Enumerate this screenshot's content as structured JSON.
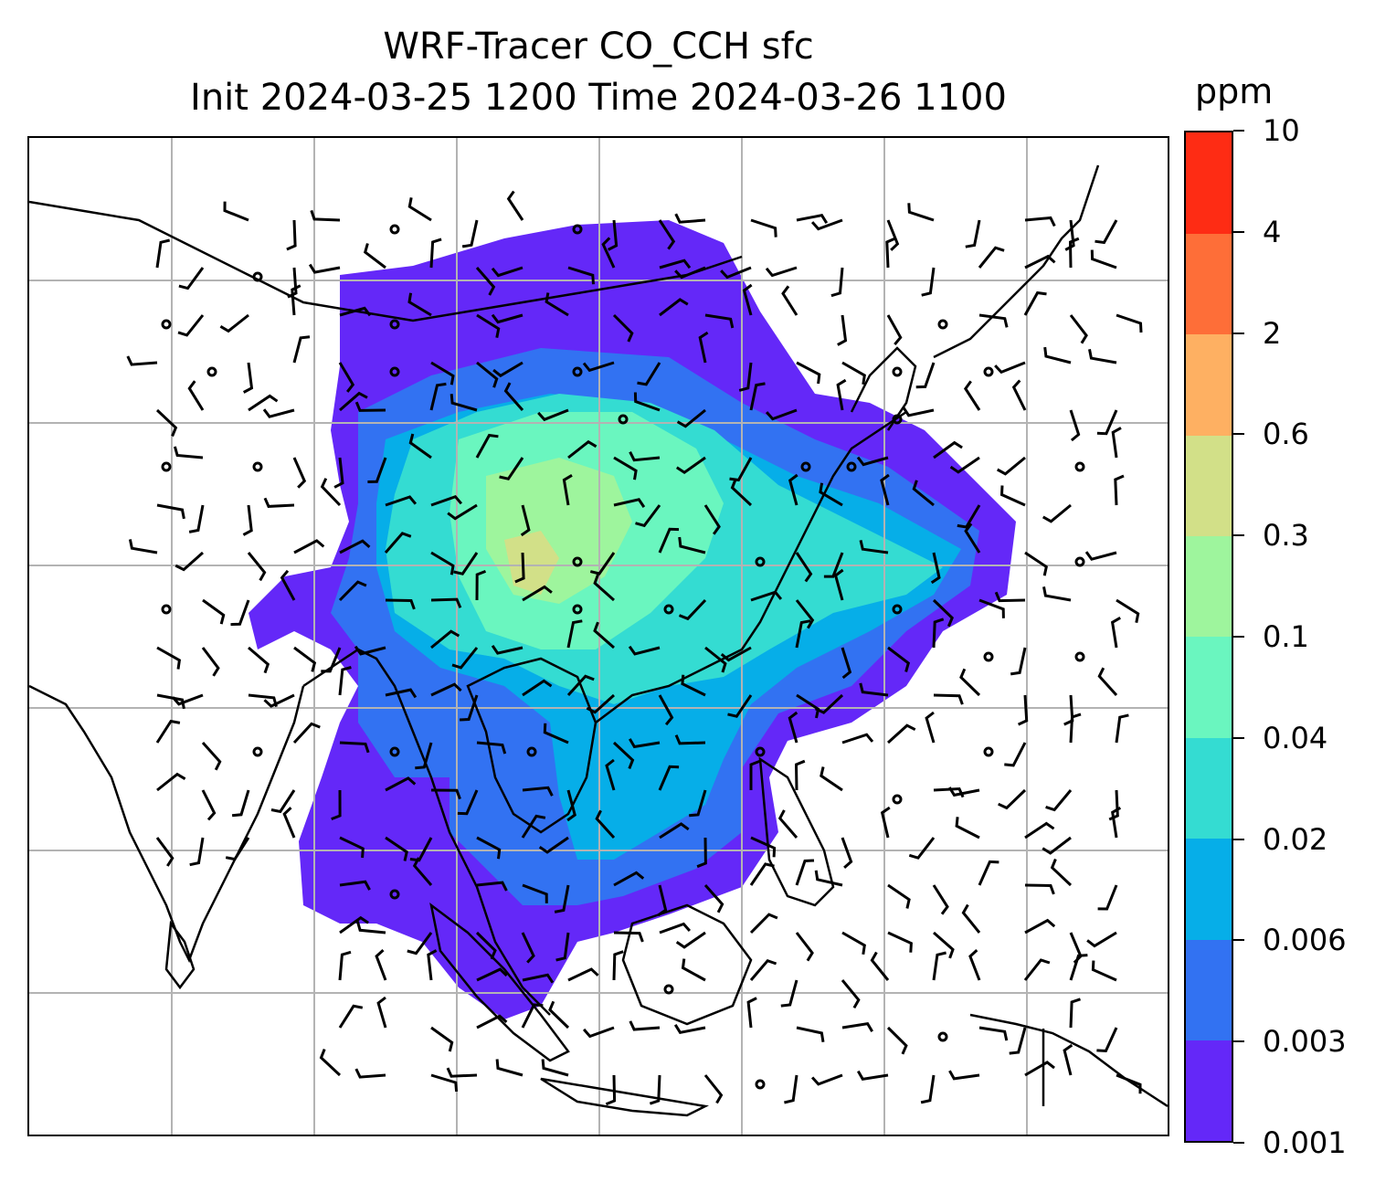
{
  "title": {
    "line1": "WRF-Tracer CO_CCH sfc",
    "line2": "Init 2024-03-25 1200 Time 2024-03-26 1100"
  },
  "colorbar": {
    "unit": "ppm",
    "levels": [
      "0.001",
      "0.003",
      "0.006",
      "0.02",
      "0.04",
      "0.1",
      "0.3",
      "0.6",
      "2",
      "4",
      "10"
    ],
    "colors": [
      "#6428f8",
      "#3272f2",
      "#06aee8",
      "#34dcd2",
      "#6af6bf",
      "#9ef59d",
      "#d2e088",
      "#feb062",
      "#fe6e38",
      "#fe2c14"
    ]
  },
  "map": {
    "field": "CO_CCH surface concentration",
    "overlay": "wind barbs",
    "coastlines": true,
    "gridlines": true,
    "gridline_color": "#b3b3b3",
    "coastline_color": "#000000",
    "barb_color": "#000000"
  }
}
